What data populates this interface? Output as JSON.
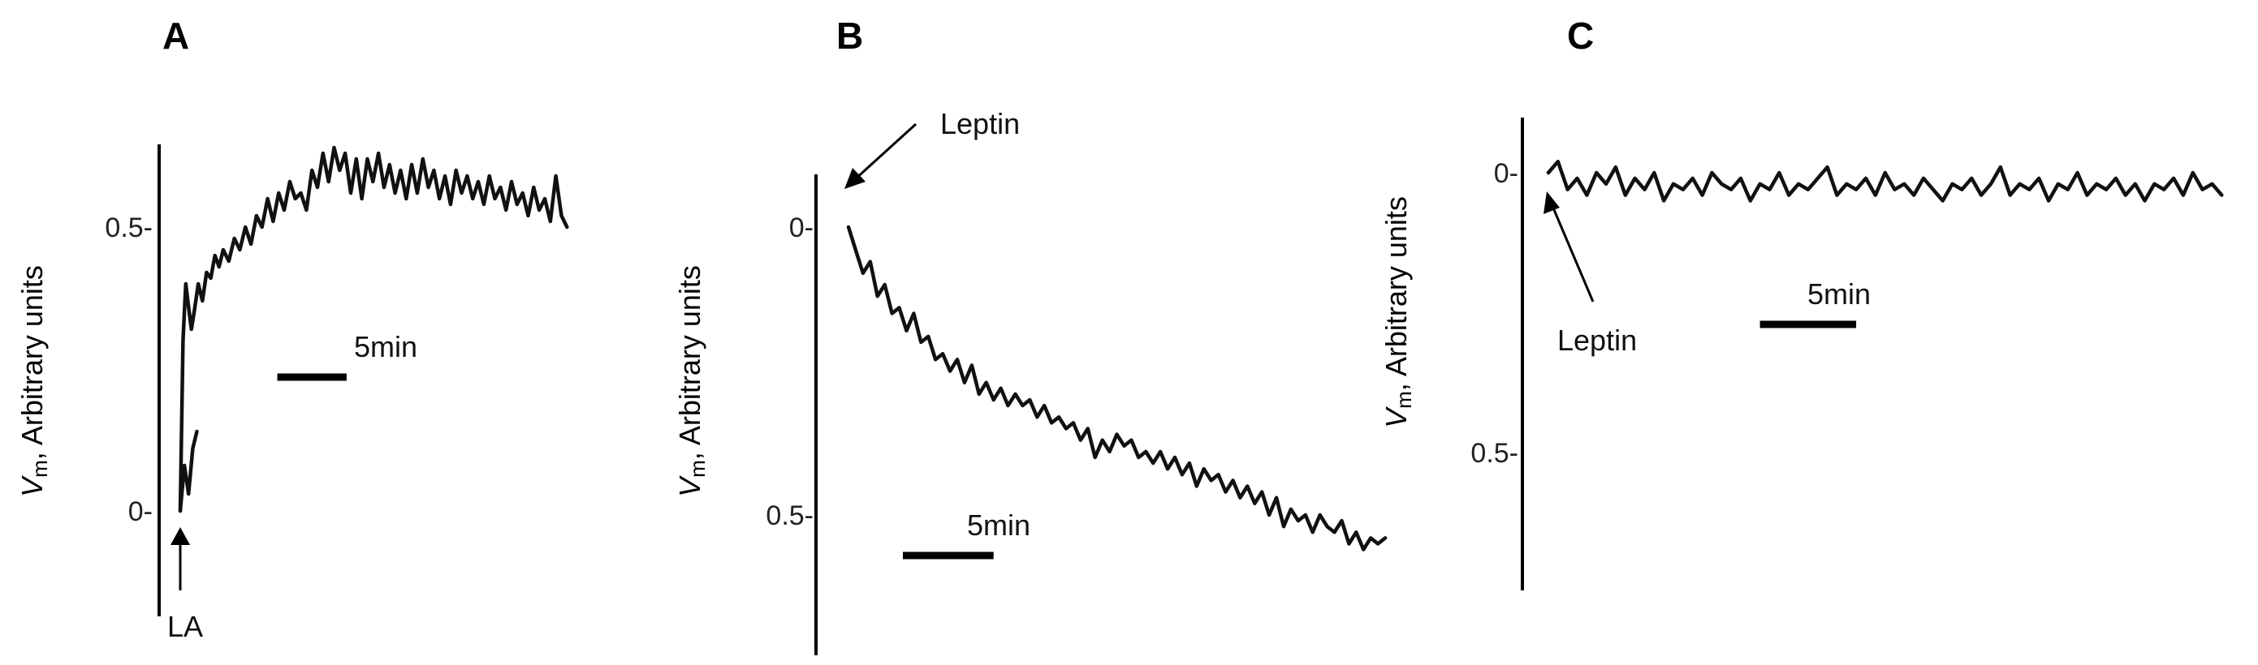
{
  "chart_data": [
    {
      "type": "line",
      "panel": "A",
      "ylabel_var": "V",
      "ylabel_sub": "m",
      "ylabel_rest": ", Arbitrary units",
      "yticks": [
        {
          "value": 0,
          "label": "0-"
        },
        {
          "value": 0.5,
          "label": "0.5-"
        }
      ],
      "ylim": [
        -0.18,
        0.65
      ],
      "xlim": [
        0,
        28
      ],
      "annotation": {
        "text": "LA",
        "x": 0
      },
      "scale_bar": {
        "label": "5min",
        "minutes": 5,
        "x_start": 7
      },
      "series": [
        {
          "x": [
            0,
            0.1,
            0.2,
            0.4,
            0.6,
            0.8,
            1.0,
            1.3,
            1.6,
            1.9,
            2.2,
            2.5,
            2.8,
            3.1,
            3.5,
            3.9,
            4.3,
            4.7,
            5.1,
            5.5,
            5.9,
            6.3,
            6.7,
            7.1,
            7.5,
            7.9,
            8.3,
            8.7,
            9.1,
            9.5,
            9.9,
            10.3,
            10.7,
            11.1,
            11.5,
            11.9,
            12.3,
            12.7,
            13.1,
            13.5,
            13.9,
            14.3,
            14.7,
            15.1,
            15.5,
            15.9,
            16.3,
            16.7,
            17.1,
            17.5,
            17.9,
            18.3,
            18.7,
            19.1,
            19.5,
            19.9,
            20.3,
            20.7,
            21.1,
            21.5,
            21.9,
            22.3,
            22.7,
            23.1,
            23.5,
            23.9,
            24.3,
            24.7,
            25.1,
            25.5,
            25.9,
            26.3,
            26.7,
            27.1,
            27.5,
            27.9
          ],
          "y": [
            0.0,
            0.15,
            0.3,
            0.4,
            0.36,
            0.32,
            0.35,
            0.4,
            0.37,
            0.42,
            0.41,
            0.45,
            0.43,
            0.46,
            0.44,
            0.48,
            0.46,
            0.5,
            0.47,
            0.52,
            0.5,
            0.55,
            0.51,
            0.56,
            0.53,
            0.58,
            0.55,
            0.56,
            0.53,
            0.6,
            0.57,
            0.63,
            0.58,
            0.64,
            0.6,
            0.63,
            0.56,
            0.62,
            0.55,
            0.62,
            0.58,
            0.63,
            0.57,
            0.61,
            0.56,
            0.6,
            0.55,
            0.61,
            0.56,
            0.62,
            0.57,
            0.6,
            0.55,
            0.59,
            0.54,
            0.6,
            0.56,
            0.59,
            0.55,
            0.58,
            0.54,
            0.59,
            0.55,
            0.57,
            0.53,
            0.58,
            0.54,
            0.56,
            0.52,
            0.57,
            0.53,
            0.55,
            0.51,
            0.59,
            0.52,
            0.5
          ]
        },
        {
          "x": [
            0,
            0.3,
            0.6,
            0.9,
            1.2
          ],
          "y": [
            0.0,
            0.08,
            0.03,
            0.11,
            0.14
          ]
        }
      ]
    },
    {
      "type": "line",
      "panel": "B",
      "ylabel_var": "V",
      "ylabel_sub": "m",
      "ylabel_rest": ", Arbitrary units",
      "yticks": [
        {
          "value": 0,
          "label": "0-"
        },
        {
          "value": 0.5,
          "label": "0.5-"
        }
      ],
      "ylim": [
        -0.09,
        0.73
      ],
      "xlim": [
        0,
        30
      ],
      "annotation": {
        "text": "Leptin",
        "x": 0
      },
      "scale_bar": {
        "label": "5min",
        "minutes": 5,
        "x_start": 3
      },
      "series": [
        {
          "x": [
            0,
            0.4,
            0.8,
            1.2,
            1.6,
            2.0,
            2.4,
            2.8,
            3.2,
            3.6,
            4.0,
            4.4,
            4.8,
            5.2,
            5.6,
            6.0,
            6.4,
            6.8,
            7.2,
            7.6,
            8.0,
            8.4,
            8.8,
            9.2,
            9.6,
            10.0,
            10.4,
            10.8,
            11.2,
            11.6,
            12.0,
            12.4,
            12.8,
            13.2,
            13.6,
            14.0,
            14.4,
            14.8,
            15.2,
            15.6,
            16.0,
            16.4,
            16.8,
            17.2,
            17.6,
            18.0,
            18.4,
            18.8,
            19.2,
            19.6,
            20.0,
            20.4,
            20.8,
            21.2,
            21.6,
            22.0,
            22.4,
            22.8,
            23.2,
            23.6,
            24.0,
            24.4,
            24.8,
            25.2,
            25.6,
            26.0,
            26.4,
            26.8,
            27.2,
            27.6,
            28.0,
            28.4,
            28.8,
            29.2,
            29.6
          ],
          "y": [
            0.0,
            0.04,
            0.08,
            0.06,
            0.12,
            0.1,
            0.15,
            0.14,
            0.18,
            0.15,
            0.2,
            0.19,
            0.23,
            0.22,
            0.25,
            0.23,
            0.27,
            0.24,
            0.29,
            0.27,
            0.3,
            0.28,
            0.31,
            0.29,
            0.31,
            0.3,
            0.33,
            0.31,
            0.34,
            0.33,
            0.35,
            0.34,
            0.37,
            0.35,
            0.4,
            0.37,
            0.39,
            0.36,
            0.38,
            0.37,
            0.4,
            0.39,
            0.41,
            0.39,
            0.42,
            0.4,
            0.43,
            0.41,
            0.45,
            0.42,
            0.44,
            0.43,
            0.46,
            0.44,
            0.47,
            0.45,
            0.48,
            0.46,
            0.5,
            0.47,
            0.52,
            0.49,
            0.51,
            0.5,
            0.53,
            0.5,
            0.52,
            0.53,
            0.51,
            0.55,
            0.53,
            0.56,
            0.54,
            0.55,
            0.54
          ]
        }
      ]
    },
    {
      "type": "line",
      "panel": "C",
      "ylabel_var": "V",
      "ylabel_sub": "m",
      "ylabel_rest": ", Arbitrary units",
      "yticks": [
        {
          "value": 0,
          "label": "0-"
        },
        {
          "value": 0.5,
          "label": "0.5-"
        }
      ],
      "ylim": [
        -0.09,
        0.74
      ],
      "xlim": [
        0,
        36
      ],
      "annotation": {
        "text": "Leptin",
        "x": 0
      },
      "scale_bar": {
        "label": "5min",
        "minutes": 5,
        "x_start": 11
      },
      "series": [
        {
          "x": [
            0,
            0.5,
            1.0,
            1.5,
            2.0,
            2.5,
            3.0,
            3.5,
            4.0,
            4.5,
            5.0,
            5.5,
            6.0,
            6.5,
            7.0,
            7.5,
            8.0,
            8.5,
            9.0,
            9.5,
            10.0,
            10.5,
            11.0,
            11.5,
            12.0,
            12.5,
            13.0,
            13.5,
            14.0,
            14.5,
            15.0,
            15.5,
            16.0,
            16.5,
            17.0,
            17.5,
            18.0,
            18.5,
            19.0,
            19.5,
            20.0,
            20.5,
            21.0,
            21.5,
            22.0,
            22.5,
            23.0,
            23.5,
            24.0,
            24.5,
            25.0,
            25.5,
            26.0,
            26.5,
            27.0,
            27.5,
            28.0,
            28.5,
            29.0,
            29.5,
            30.0,
            30.5,
            31.0,
            31.5,
            32.0,
            32.5,
            33.0,
            33.5,
            34.0,
            34.5,
            35.0
          ],
          "y": [
            0.0,
            -0.02,
            0.03,
            0.01,
            0.04,
            0.0,
            0.02,
            -0.01,
            0.04,
            0.01,
            0.03,
            0.0,
            0.05,
            0.02,
            0.03,
            0.01,
            0.04,
            0.0,
            0.02,
            0.03,
            0.01,
            0.05,
            0.02,
            0.03,
            0.0,
            0.04,
            0.02,
            0.03,
            0.01,
            -0.01,
            0.04,
            0.02,
            0.03,
            0.01,
            0.04,
            0.0,
            0.03,
            0.02,
            0.04,
            0.01,
            0.03,
            0.05,
            0.02,
            0.03,
            0.01,
            0.04,
            0.02,
            -0.01,
            0.04,
            0.02,
            0.03,
            0.01,
            0.05,
            0.02,
            0.03,
            0.0,
            0.04,
            0.02,
            0.03,
            0.01,
            0.04,
            0.02,
            0.05,
            0.02,
            0.03,
            0.01,
            0.04,
            0.0,
            0.03,
            0.02,
            0.04
          ]
        }
      ]
    }
  ]
}
